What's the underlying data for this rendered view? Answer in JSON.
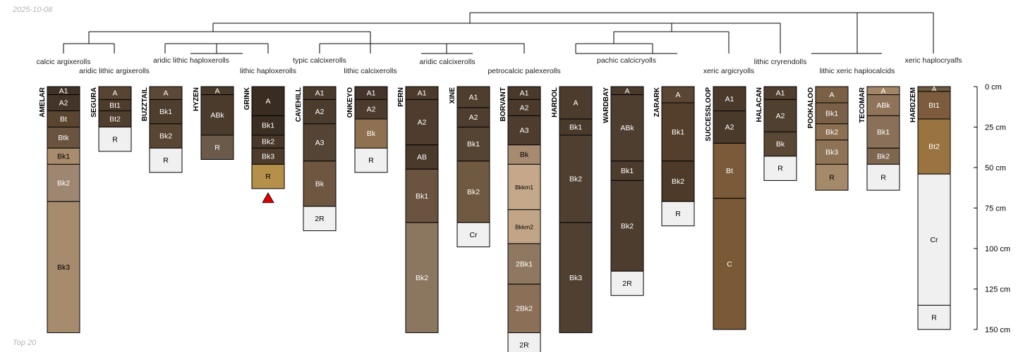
{
  "header": {
    "date": "2025-10-08"
  },
  "footer": {
    "label": "Top 20"
  },
  "chart_data": {
    "type": "soil-profile-sketch",
    "depth_axis": {
      "unit": "cm",
      "min": 0,
      "max": 150,
      "ticks": [
        0,
        25,
        50,
        75,
        100,
        125,
        150
      ],
      "tick_labels": [
        "0 cm",
        "25 cm",
        "50 cm",
        "75 cm",
        "100 cm",
        "125 cm",
        "150 cm"
      ]
    },
    "profiles": [
      {
        "name": "AMELAR",
        "taxon": "calcic argixerolls",
        "flag": false,
        "horizons": [
          {
            "name": "A1",
            "top": 0,
            "bottom": 5,
            "color": "#3f3226"
          },
          {
            "name": "A2",
            "top": 5,
            "bottom": 15,
            "color": "#44352a"
          },
          {
            "name": "Bt",
            "top": 15,
            "bottom": 25,
            "color": "#5a4530"
          },
          {
            "name": "Btk",
            "top": 25,
            "bottom": 38,
            "color": "#6a5440"
          },
          {
            "name": "Bk1",
            "top": 38,
            "bottom": 48,
            "color": "#a88c6c"
          },
          {
            "name": "Bk2",
            "top": 48,
            "bottom": 71,
            "color": "#9e8670"
          },
          {
            "name": "Bk3",
            "top": 71,
            "bottom": 152,
            "color": "#a68b6d"
          }
        ]
      },
      {
        "name": "SEGURA",
        "taxon": "aridic lithic argixerolls",
        "flag": false,
        "horizons": [
          {
            "name": "A",
            "top": 0,
            "bottom": 8,
            "color": "#574432"
          },
          {
            "name": "Bt1",
            "top": 8,
            "bottom": 15,
            "color": "#4d3b2b"
          },
          {
            "name": "Bt2",
            "top": 15,
            "bottom": 25,
            "color": "#4f3d2d"
          },
          {
            "name": "R",
            "top": 25,
            "bottom": 40,
            "color": "#f0f0f0"
          }
        ]
      },
      {
        "name": "BUZZTAIL",
        "taxon": "aridic lithic haploxerolls",
        "flag": false,
        "horizons": [
          {
            "name": "A",
            "top": 0,
            "bottom": 8,
            "color": "#5b4836"
          },
          {
            "name": "Bk1",
            "top": 8,
            "bottom": 23,
            "color": "#4e3e2e"
          },
          {
            "name": "Bk2",
            "top": 23,
            "bottom": 38,
            "color": "#584633"
          },
          {
            "name": "R",
            "top": 38,
            "bottom": 53,
            "color": "#f0f0f0"
          }
        ]
      },
      {
        "name": "HYZEN",
        "taxon": "aridic lithic haploxerolls",
        "flag": false,
        "horizons": [
          {
            "name": "A",
            "top": 0,
            "bottom": 5,
            "color": "#48392b"
          },
          {
            "name": "ABk",
            "top": 5,
            "bottom": 30,
            "color": "#4a3b2c"
          },
          {
            "name": "R",
            "top": 30,
            "bottom": 45,
            "color": "#6b5a4a"
          }
        ]
      },
      {
        "name": "GRINK",
        "taxon": "lithic haploxerolls",
        "flag": true,
        "horizons": [
          {
            "name": "A",
            "top": 0,
            "bottom": 18,
            "color": "#3a2c20"
          },
          {
            "name": "Bk1",
            "top": 18,
            "bottom": 30,
            "color": "#3b2e22"
          },
          {
            "name": "Bk2",
            "top": 30,
            "bottom": 38,
            "color": "#47382a"
          },
          {
            "name": "Bk3",
            "top": 38,
            "bottom": 48,
            "color": "#4d3c2c"
          },
          {
            "name": "R",
            "top": 48,
            "bottom": 63,
            "color": "#b5904a"
          }
        ]
      },
      {
        "name": "CAVEHILL",
        "taxon": "typic calcixerolls",
        "flag": false,
        "horizons": [
          {
            "name": "A1",
            "top": 0,
            "bottom": 8,
            "color": "#4a3a2c"
          },
          {
            "name": "A2",
            "top": 8,
            "bottom": 23,
            "color": "#4c3c2d"
          },
          {
            "name": "A3",
            "top": 23,
            "bottom": 46,
            "color": "#554434"
          },
          {
            "name": "Bk",
            "top": 46,
            "bottom": 74,
            "color": "#6e5640"
          },
          {
            "name": "2R",
            "top": 74,
            "bottom": 89,
            "color": "#f0f0f0"
          }
        ]
      },
      {
        "name": "ONKEYO",
        "taxon": "lithic calcixerolls",
        "flag": false,
        "horizons": [
          {
            "name": "A1",
            "top": 0,
            "bottom": 8,
            "color": "#44352a"
          },
          {
            "name": "A2",
            "top": 8,
            "bottom": 20,
            "color": "#4d3c2d"
          },
          {
            "name": "Bk",
            "top": 20,
            "bottom": 38,
            "color": "#8f7050"
          },
          {
            "name": "R",
            "top": 38,
            "bottom": 53,
            "color": "#f0f0f0"
          }
        ]
      },
      {
        "name": "PERN",
        "taxon": "aridic calcixerolls",
        "flag": false,
        "horizons": [
          {
            "name": "A1",
            "top": 0,
            "bottom": 8,
            "color": "#4c3b2c"
          },
          {
            "name": "A2",
            "top": 8,
            "bottom": 36,
            "color": "#4e3d2e"
          },
          {
            "name": "AB",
            "top": 36,
            "bottom": 51,
            "color": "#4a3a2b"
          },
          {
            "name": "Bk1",
            "top": 51,
            "bottom": 84,
            "color": "#6a5440"
          },
          {
            "name": "Bk2",
            "top": 84,
            "bottom": 152,
            "color": "#8b7660"
          }
        ]
      },
      {
        "name": "XINE",
        "taxon": "aridic calcixerolls",
        "flag": false,
        "horizons": [
          {
            "name": "A1",
            "top": 0,
            "bottom": 13,
            "color": "#4e3e2e"
          },
          {
            "name": "A2",
            "top": 13,
            "bottom": 25,
            "color": "#4f3e2f"
          },
          {
            "name": "Bk1",
            "top": 25,
            "bottom": 46,
            "color": "#554433"
          },
          {
            "name": "Bk2",
            "top": 46,
            "bottom": 84,
            "color": "#6f5940"
          },
          {
            "name": "Cr",
            "top": 84,
            "bottom": 99,
            "color": "#f0f0f0"
          }
        ]
      },
      {
        "name": "BORVANT",
        "taxon": "petrocalcic palexerolls",
        "flag": false,
        "horizons": [
          {
            "name": "A1",
            "top": 0,
            "bottom": 8,
            "color": "#48392b"
          },
          {
            "name": "A2",
            "top": 8,
            "bottom": 18,
            "color": "#4b3a2c"
          },
          {
            "name": "A3",
            "top": 18,
            "bottom": 36,
            "color": "#4e3d2e"
          },
          {
            "name": "Bk",
            "top": 36,
            "bottom": 48,
            "color": "#a68b70"
          },
          {
            "name": "Bkkm1",
            "top": 48,
            "bottom": 76,
            "color": "#c4a889"
          },
          {
            "name": "Bkkm2",
            "top": 76,
            "bottom": 97,
            "color": "#c1a586"
          },
          {
            "name": "2Bk1",
            "top": 97,
            "bottom": 122,
            "color": "#8f7862"
          },
          {
            "name": "2Bk2",
            "top": 122,
            "bottom": 152,
            "color": "#8b7057"
          },
          {
            "name": "2R",
            "top": 152,
            "bottom": 167,
            "color": "#f0f0f0"
          }
        ]
      },
      {
        "name": "HARDOL",
        "taxon": "petrocalcic palexerolls",
        "flag": false,
        "horizons": [
          {
            "name": "A",
            "top": 0,
            "bottom": 20,
            "color": "#4c3c2e"
          },
          {
            "name": "Bk1",
            "top": 20,
            "bottom": 30,
            "color": "#4a3a2c"
          },
          {
            "name": "Bk2",
            "top": 30,
            "bottom": 84,
            "color": "#4f3f31"
          },
          {
            "name": "Bk3",
            "top": 84,
            "bottom": 152,
            "color": "#504032"
          }
        ]
      },
      {
        "name": "WARDBAY",
        "taxon": "pachic calcicryolls",
        "flag": false,
        "horizons": [
          {
            "name": "A",
            "top": 0,
            "bottom": 5,
            "color": "#4a3a2c"
          },
          {
            "name": "ABk",
            "top": 5,
            "bottom": 46,
            "color": "#4e3e30"
          },
          {
            "name": "Bk1",
            "top": 46,
            "bottom": 58,
            "color": "#4c3c2e"
          },
          {
            "name": "Bk2",
            "top": 58,
            "bottom": 114,
            "color": "#4d3d2f"
          },
          {
            "name": "2R",
            "top": 114,
            "bottom": 129,
            "color": "#f0f0f0"
          }
        ]
      },
      {
        "name": "ZARARK",
        "taxon": "pachic calcicryolls",
        "flag": false,
        "horizons": [
          {
            "name": "A",
            "top": 0,
            "bottom": 10,
            "color": "#5a4633"
          },
          {
            "name": "Bk1",
            "top": 10,
            "bottom": 46,
            "color": "#533f2c"
          },
          {
            "name": "Bk2",
            "top": 46,
            "bottom": 71,
            "color": "#4d3a29"
          },
          {
            "name": "R",
            "top": 71,
            "bottom": 86,
            "color": "#f0f0f0"
          }
        ]
      },
      {
        "name": "SUCCESSLOOP",
        "taxon": "xeric argicryolls",
        "flag": false,
        "horizons": [
          {
            "name": "A1",
            "top": 0,
            "bottom": 15,
            "color": "#4b3a2c"
          },
          {
            "name": "A2",
            "top": 15,
            "bottom": 35,
            "color": "#4a3a2c"
          },
          {
            "name": "Bt",
            "top": 35,
            "bottom": 69,
            "color": "#7a5a38"
          },
          {
            "name": "C",
            "top": 69,
            "bottom": 150,
            "color": "#7a5a36"
          }
        ]
      },
      {
        "name": "HALACAN",
        "taxon": "lithic cryrendolls",
        "flag": false,
        "horizons": [
          {
            "name": "A1",
            "top": 0,
            "bottom": 8,
            "color": "#4f3e2e"
          },
          {
            "name": "A2",
            "top": 8,
            "bottom": 28,
            "color": "#504030"
          },
          {
            "name": "Bk",
            "top": 28,
            "bottom": 43,
            "color": "#5a4836"
          },
          {
            "name": "R",
            "top": 43,
            "bottom": 58,
            "color": "#f0f0f0"
          }
        ]
      },
      {
        "name": "POOKALOO",
        "taxon": "lithic xeric haplocalcids",
        "flag": false,
        "horizons": [
          {
            "name": "A",
            "top": 0,
            "bottom": 10,
            "color": "#7a6045"
          },
          {
            "name": "Bk1",
            "top": 10,
            "bottom": 23,
            "color": "#7b6048"
          },
          {
            "name": "Bk2",
            "top": 23,
            "bottom": 33,
            "color": "#8b7052"
          },
          {
            "name": "Bk3",
            "top": 33,
            "bottom": 48,
            "color": "#8e7355"
          },
          {
            "name": "R",
            "top": 48,
            "bottom": 64,
            "color": "#a58a6a"
          }
        ]
      },
      {
        "name": "TECOMAR",
        "taxon": "lithic xeric haplocalcids",
        "flag": false,
        "horizons": [
          {
            "name": "A",
            "top": 0,
            "bottom": 5,
            "color": "#a18565"
          },
          {
            "name": "ABk",
            "top": 5,
            "bottom": 18,
            "color": "#8f745a"
          },
          {
            "name": "Bk1",
            "top": 18,
            "bottom": 38,
            "color": "#8a7058"
          },
          {
            "name": "Bk2",
            "top": 38,
            "bottom": 48,
            "color": "#7e664f"
          },
          {
            "name": "R",
            "top": 48,
            "bottom": 64,
            "color": "#f0f0f0"
          }
        ]
      },
      {
        "name": "HARDZEM",
        "taxon": "xeric haplocryalfs",
        "flag": false,
        "horizons": [
          {
            "name": "A",
            "top": 0,
            "bottom": 3,
            "color": "#6d5842"
          },
          {
            "name": "Bt1",
            "top": 3,
            "bottom": 20,
            "color": "#7c5c3c"
          },
          {
            "name": "Bt2",
            "top": 20,
            "bottom": 54,
            "color": "#9a7440"
          },
          {
            "name": "Cr",
            "top": 54,
            "bottom": 135,
            "color": "#f0f0f0"
          },
          {
            "name": "R",
            "top": 135,
            "bottom": 150,
            "color": "#f0f0f0"
          }
        ]
      }
    ]
  }
}
